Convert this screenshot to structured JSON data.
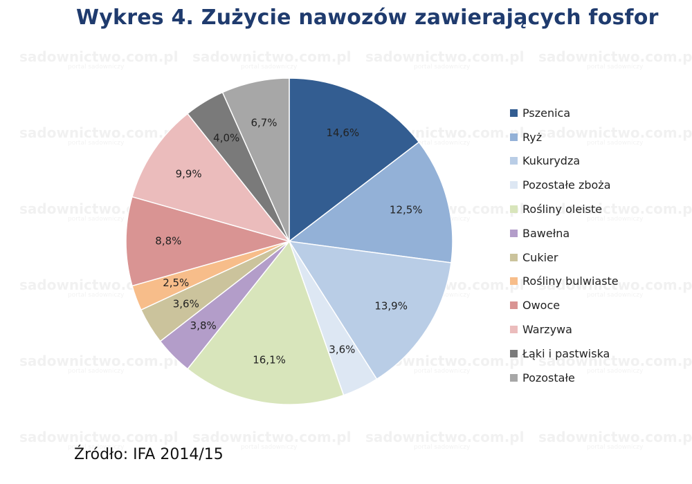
{
  "title": "Wykres 4. Zużycie nawozów zawierających fosfor",
  "source": "Źródło: IFA 2014/15",
  "watermark": {
    "text": "sadownictwo.com.pl",
    "subtext": "portal sadowniczy"
  },
  "chart_data": {
    "type": "pie",
    "title": "Wykres 4. Zużycie nawozów zawierających fosfor",
    "legend_position": "right",
    "unit": "%",
    "slices": [
      {
        "label": "Pszenica",
        "value": 14.6,
        "display": "14,6%",
        "color": "#335d91"
      },
      {
        "label": "Ryż",
        "value": 12.5,
        "display": "12,5%",
        "color": "#93b1d7"
      },
      {
        "label": "Kukurydza",
        "value": 13.9,
        "display": "13,9%",
        "color": "#b9cde6"
      },
      {
        "label": "Pozostałe zboża",
        "value": 3.6,
        "display": "3,6%",
        "color": "#dde7f3"
      },
      {
        "label": "Rośliny oleiste",
        "value": 16.1,
        "display": "16,1%",
        "color": "#d8e5bb"
      },
      {
        "label": "Bawełna",
        "value": 3.8,
        "display": "3,8%",
        "color": "#b39dc9"
      },
      {
        "label": "Cukier",
        "value": 3.6,
        "display": "3,6%",
        "color": "#cbc39c"
      },
      {
        "label": "Rośliny bulwiaste",
        "value": 2.5,
        "display": "2,5%",
        "color": "#f7bd8a"
      },
      {
        "label": "Owoce",
        "value": 8.8,
        "display": "8,8%",
        "color": "#d99493"
      },
      {
        "label": "Warzywa",
        "value": 9.9,
        "display": "9,9%",
        "color": "#ebbcbc"
      },
      {
        "label": "Łąki i pastwiska",
        "value": 4.0,
        "display": "4,0%",
        "color": "#7a7a7a"
      },
      {
        "label": "Pozostałe",
        "value": 6.7,
        "display": "6,7%",
        "color": "#a7a7a7"
      }
    ]
  }
}
